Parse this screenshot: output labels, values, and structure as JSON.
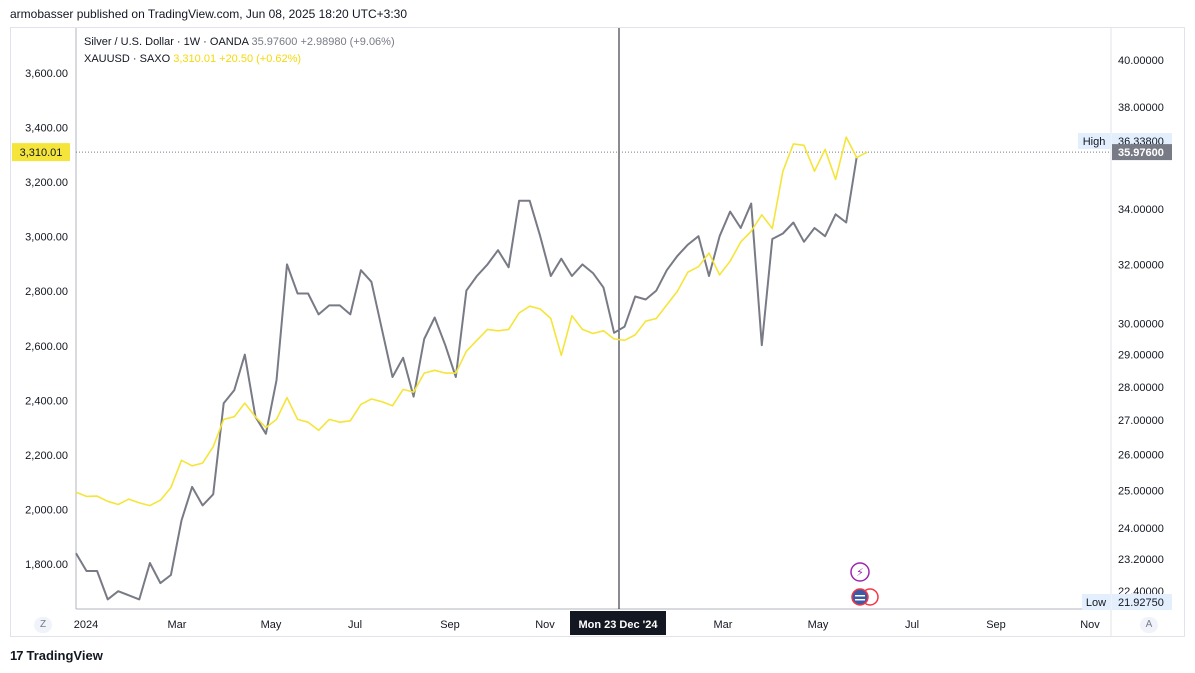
{
  "header": {
    "text": "armobasser published on TradingView.com, Jun 08, 2025 18:20 UTC+3:30"
  },
  "legend": {
    "line1": {
      "symbol": "Silver / U.S. Dollar · 1W · OANDA",
      "price": "35.97600",
      "change": "+2.98980 (+9.06%)"
    },
    "line2": {
      "symbol": "XAUUSD · SAXO",
      "price": "3,310.01",
      "change": "+20.50 (+0.62%)"
    }
  },
  "footer": {
    "brand": "TradingView"
  },
  "buttons": {
    "left": "Z",
    "right": "A"
  },
  "chart_data": {
    "type": "line",
    "x_tick_labels": [
      "2024",
      "Mar",
      "May",
      "Jul",
      "Sep",
      "Nov",
      "Mon 23 Dec '24",
      "Mar",
      "May",
      "Jul",
      "Sep",
      "Nov"
    ],
    "crosshair_label": "Mon 23 Dec '24",
    "left_axis": {
      "ticks": [
        1800,
        2000,
        2200,
        2400,
        2600,
        2800,
        3000,
        3200,
        3400,
        3600
      ],
      "tick_labels": [
        "1,800.00",
        "2,000.00",
        "2,200.00",
        "2,400.00",
        "2,600.00",
        "2,800.00",
        "3,000.00",
        "3,200.00",
        "3,400.00",
        "3,600.00"
      ],
      "price_tag": "3,310.01",
      "price_tag_value": 3310.01
    },
    "right_axis": {
      "scale": "log",
      "ticks": [
        22.4,
        23.2,
        24,
        25,
        26,
        27,
        28,
        29,
        30,
        32,
        34,
        38,
        40
      ],
      "tick_labels": [
        "22.40000",
        "23.20000",
        "24.00000",
        "25.00000",
        "26.00000",
        "27.00000",
        "28.00000",
        "29.00000",
        "30.00000",
        "32.00000",
        "34.00000",
        "38.00000",
        "40.00000"
      ],
      "high_label": "High",
      "high_value": "36.33800",
      "low_label": "Low",
      "low_value": "21.92750",
      "current_value": "35.97600"
    },
    "series": [
      {
        "name": "Silver / U.S. Dollar",
        "axis": "right",
        "color": "#787b86",
        "values": [
          23.35,
          22.9,
          22.9,
          22.2,
          22.4,
          22.3,
          22.2,
          23.1,
          22.6,
          22.8,
          24.2,
          25.1,
          24.6,
          24.9,
          27.5,
          27.9,
          29.0,
          27.1,
          26.6,
          28.2,
          32.0,
          31.0,
          31.0,
          30.3,
          30.6,
          30.6,
          30.3,
          31.8,
          31.4,
          29.8,
          28.3,
          28.9,
          27.7,
          29.5,
          30.2,
          29.3,
          28.3,
          31.1,
          31.6,
          32.0,
          32.5,
          31.9,
          34.3,
          34.3,
          33.0,
          31.6,
          32.2,
          31.6,
          32.0,
          31.7,
          31.2,
          29.7,
          29.9,
          30.9,
          30.8,
          31.1,
          31.8,
          32.3,
          32.7,
          33.0,
          31.6,
          33.0,
          33.9,
          33.3,
          34.2,
          29.3,
          32.9,
          33.1,
          33.5,
          32.8,
          33.3,
          33.0,
          33.8,
          33.5,
          35.976
        ]
      },
      {
        "name": "XAUUSD · SAXO",
        "axis": "left",
        "color": "#f5e53a",
        "values": [
          2063,
          2048,
          2049,
          2030,
          2018,
          2038,
          2024,
          2014,
          2034,
          2080,
          2180,
          2160,
          2170,
          2230,
          2330,
          2340,
          2390,
          2340,
          2300,
          2330,
          2410,
          2330,
          2320,
          2290,
          2330,
          2320,
          2325,
          2385,
          2405,
          2395,
          2380,
          2440,
          2430,
          2500,
          2510,
          2500,
          2500,
          2580,
          2620,
          2660,
          2655,
          2660,
          2720,
          2745,
          2735,
          2700,
          2565,
          2710,
          2660,
          2645,
          2655,
          2625,
          2620,
          2640,
          2690,
          2700,
          2750,
          2800,
          2870,
          2890,
          2940,
          2860,
          2910,
          2980,
          3020,
          3080,
          3030,
          3240,
          3340,
          3335,
          3240,
          3320,
          3210,
          3365,
          3290,
          3310.01
        ]
      }
    ]
  }
}
